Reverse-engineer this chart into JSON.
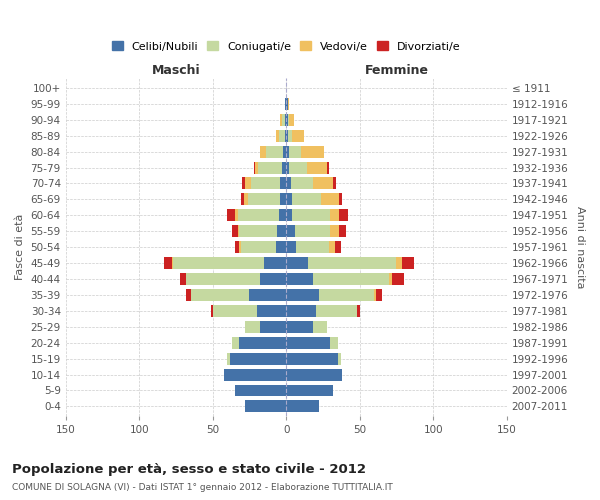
{
  "age_groups": [
    "0-4",
    "5-9",
    "10-14",
    "15-19",
    "20-24",
    "25-29",
    "30-34",
    "35-39",
    "40-44",
    "45-49",
    "50-54",
    "55-59",
    "60-64",
    "65-69",
    "70-74",
    "75-79",
    "80-84",
    "85-89",
    "90-94",
    "95-99",
    "100+"
  ],
  "birth_years": [
    "2007-2011",
    "2002-2006",
    "1997-2001",
    "1992-1996",
    "1987-1991",
    "1982-1986",
    "1977-1981",
    "1972-1976",
    "1967-1971",
    "1962-1966",
    "1957-1961",
    "1952-1956",
    "1947-1951",
    "1942-1946",
    "1937-1941",
    "1932-1936",
    "1927-1931",
    "1922-1926",
    "1917-1921",
    "1912-1916",
    "≤ 1911"
  ],
  "maschi": {
    "celibi": [
      28,
      35,
      42,
      38,
      32,
      18,
      20,
      25,
      18,
      15,
      7,
      6,
      5,
      4,
      4,
      3,
      2,
      1,
      1,
      1,
      0
    ],
    "coniugati": [
      0,
      0,
      0,
      2,
      5,
      10,
      30,
      40,
      50,
      62,
      24,
      26,
      28,
      22,
      20,
      16,
      12,
      4,
      2,
      0,
      0
    ],
    "vedovi": [
      0,
      0,
      0,
      0,
      0,
      0,
      0,
      0,
      0,
      1,
      1,
      1,
      2,
      3,
      4,
      2,
      4,
      2,
      1,
      0,
      0
    ],
    "divorziati": [
      0,
      0,
      0,
      0,
      0,
      0,
      1,
      3,
      4,
      5,
      3,
      4,
      5,
      2,
      2,
      1,
      0,
      0,
      0,
      0,
      0
    ]
  },
  "femmine": {
    "nubili": [
      22,
      32,
      38,
      35,
      30,
      18,
      20,
      22,
      18,
      15,
      7,
      6,
      4,
      4,
      3,
      2,
      2,
      1,
      1,
      1,
      0
    ],
    "coniugate": [
      0,
      0,
      0,
      2,
      5,
      10,
      28,
      38,
      52,
      60,
      22,
      24,
      26,
      20,
      15,
      12,
      8,
      3,
      1,
      0,
      0
    ],
    "vedove": [
      0,
      0,
      0,
      0,
      0,
      0,
      0,
      1,
      2,
      4,
      4,
      6,
      6,
      12,
      14,
      14,
      16,
      8,
      3,
      1,
      0
    ],
    "divorziate": [
      0,
      0,
      0,
      0,
      0,
      0,
      2,
      4,
      8,
      8,
      4,
      5,
      6,
      2,
      2,
      1,
      0,
      0,
      0,
      0,
      0
    ]
  },
  "colors": {
    "celibi": "#4472a8",
    "coniugati": "#c5d9a0",
    "vedovi": "#f0c060",
    "divorziati": "#cc2222"
  },
  "title": "Popolazione per età, sesso e stato civile - 2012",
  "subtitle": "COMUNE DI SOLAGNA (VI) - Dati ISTAT 1° gennaio 2012 - Elaborazione TUTTITALIA.IT",
  "xlabel_left": "Maschi",
  "xlabel_right": "Femmine",
  "ylabel_left": "Fasce di età",
  "ylabel_right": "Anni di nascita",
  "xlim": 150,
  "legend_labels": [
    "Celibi/Nubili",
    "Coniugati/e",
    "Vedovi/e",
    "Divorziati/e"
  ]
}
